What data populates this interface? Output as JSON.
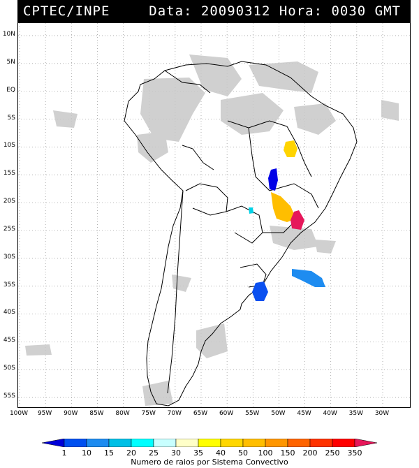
{
  "header": {
    "source": "CPTEC/INPE",
    "date_text": "Data: 20090312 Hora: 0030 GMT"
  },
  "map": {
    "latitude_labels": [
      "10N",
      "5N",
      "EQ",
      "5S",
      "10S",
      "15S",
      "20S",
      "25S",
      "30S",
      "35S",
      "40S",
      "45S",
      "50S",
      "55S"
    ],
    "longitude_labels": [
      "100W",
      "95W",
      "90W",
      "85W",
      "80W",
      "75W",
      "70W",
      "65W",
      "60W",
      "55W",
      "50W",
      "45W",
      "40W",
      "35W",
      "30W"
    ],
    "colors": {
      "cloud": "#c8c8c8",
      "coast": "#000000",
      "grid": "#909090"
    },
    "convective_systems": [
      {
        "name": "bahia-system",
        "count_class": "40-50",
        "color": "#ffd400"
      },
      {
        "name": "goias-system",
        "count_class": "1-10",
        "color": "#0000e6"
      },
      {
        "name": "minas-system",
        "count_class": "50-100",
        "color": "#ffbe00"
      },
      {
        "name": "sao-paulo-system",
        "count_class": "250-350",
        "color": "#e6175a"
      },
      {
        "name": "mato-grosso-sul-system",
        "count_class": "20-25",
        "color": "#00d2e6"
      },
      {
        "name": "uruguay-system",
        "count_class": "1-10",
        "color": "#0a50f0"
      },
      {
        "name": "atlantic-system",
        "count_class": "10-15",
        "color": "#1e8cf0"
      }
    ]
  },
  "scale": {
    "labels": [
      "1",
      "10",
      "15",
      "20",
      "25",
      "30",
      "35",
      "40",
      "50",
      "100",
      "150",
      "200",
      "250",
      "350"
    ],
    "colors": [
      "#0000d8",
      "#0050f0",
      "#1e8cf0",
      "#00c0e6",
      "#00ffff",
      "#c8ffff",
      "#ffffc8",
      "#ffff00",
      "#ffd700",
      "#ffbe00",
      "#ff9600",
      "#ff6400",
      "#ff3200",
      "#ff0000",
      "#e6175a"
    ],
    "caption": "Numero de raios por Sistema Convectivo"
  }
}
